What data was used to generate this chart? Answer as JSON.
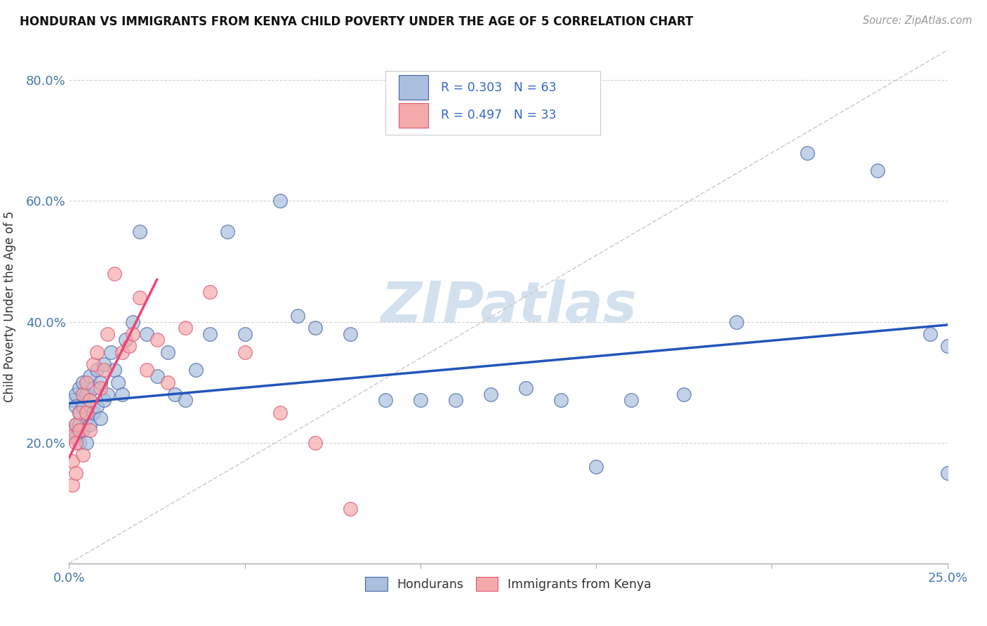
{
  "title": "HONDURAN VS IMMIGRANTS FROM KENYA CHILD POVERTY UNDER THE AGE OF 5 CORRELATION CHART",
  "source": "Source: ZipAtlas.com",
  "ylabel": "Child Poverty Under the Age of 5",
  "xlim": [
    0.0,
    0.25
  ],
  "ylim": [
    0.0,
    0.85
  ],
  "xtick_positions": [
    0.0,
    0.05,
    0.1,
    0.15,
    0.2,
    0.25
  ],
  "xticklabels": [
    "0.0%",
    "",
    "",
    "",
    "",
    "25.0%"
  ],
  "ytick_positions": [
    0.0,
    0.2,
    0.4,
    0.6,
    0.8
  ],
  "yticklabels": [
    "",
    "20.0%",
    "40.0%",
    "60.0%",
    "80.0%"
  ],
  "legend1_r": "0.303",
  "legend1_n": "63",
  "legend2_r": "0.497",
  "legend2_n": "33",
  "blue_fill": "#AABFDD",
  "blue_edge": "#4466AA",
  "pink_fill": "#F4AAAA",
  "pink_edge": "#DD5577",
  "trend_blue": "#2255BB",
  "trend_pink": "#EE4477",
  "diag_color": "#CCCCCC",
  "watermark_text": "ZIPatlas",
  "watermark_color": "#C5D8EA",
  "hondurans_x": [
    0.001,
    0.001,
    0.002,
    0.002,
    0.002,
    0.002,
    0.003,
    0.003,
    0.003,
    0.003,
    0.004,
    0.004,
    0.004,
    0.005,
    0.005,
    0.005,
    0.006,
    0.006,
    0.006,
    0.007,
    0.007,
    0.008,
    0.008,
    0.009,
    0.009,
    0.01,
    0.01,
    0.011,
    0.012,
    0.013,
    0.014,
    0.015,
    0.016,
    0.018,
    0.02,
    0.022,
    0.025,
    0.028,
    0.03,
    0.033,
    0.036,
    0.04,
    0.045,
    0.05,
    0.06,
    0.065,
    0.07,
    0.08,
    0.09,
    0.1,
    0.11,
    0.12,
    0.13,
    0.14,
    0.15,
    0.16,
    0.175,
    0.19,
    0.21,
    0.23,
    0.245,
    0.25,
    0.25
  ],
  "hondurans_y": [
    0.27,
    0.22,
    0.28,
    0.23,
    0.26,
    0.21,
    0.29,
    0.25,
    0.23,
    0.2,
    0.3,
    0.26,
    0.22,
    0.28,
    0.24,
    0.2,
    0.31,
    0.27,
    0.23,
    0.29,
    0.25,
    0.32,
    0.26,
    0.3,
    0.24,
    0.33,
    0.27,
    0.28,
    0.35,
    0.32,
    0.3,
    0.28,
    0.37,
    0.4,
    0.55,
    0.38,
    0.31,
    0.35,
    0.28,
    0.27,
    0.32,
    0.38,
    0.55,
    0.38,
    0.6,
    0.41,
    0.39,
    0.38,
    0.27,
    0.27,
    0.27,
    0.28,
    0.29,
    0.27,
    0.16,
    0.27,
    0.28,
    0.4,
    0.68,
    0.65,
    0.38,
    0.36,
    0.15
  ],
  "kenya_x": [
    0.001,
    0.001,
    0.001,
    0.002,
    0.002,
    0.002,
    0.003,
    0.003,
    0.004,
    0.004,
    0.005,
    0.005,
    0.006,
    0.006,
    0.007,
    0.008,
    0.009,
    0.01,
    0.011,
    0.013,
    0.015,
    0.017,
    0.018,
    0.02,
    0.022,
    0.025,
    0.028,
    0.033,
    0.04,
    0.05,
    0.06,
    0.07,
    0.08
  ],
  "kenya_y": [
    0.21,
    0.17,
    0.13,
    0.23,
    0.2,
    0.15,
    0.25,
    0.22,
    0.28,
    0.18,
    0.3,
    0.25,
    0.27,
    0.22,
    0.33,
    0.35,
    0.29,
    0.32,
    0.38,
    0.48,
    0.35,
    0.36,
    0.38,
    0.44,
    0.32,
    0.37,
    0.3,
    0.39,
    0.45,
    0.35,
    0.25,
    0.2,
    0.09
  ],
  "blue_trendline_x": [
    0.0,
    0.25
  ],
  "blue_trendline_y": [
    0.265,
    0.395
  ],
  "pink_trendline_x": [
    0.0,
    0.025
  ],
  "pink_trendline_y": [
    0.175,
    0.47
  ]
}
